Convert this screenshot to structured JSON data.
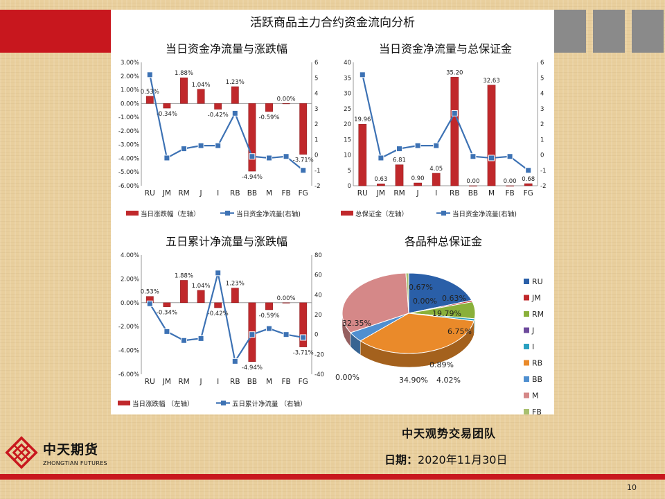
{
  "page": {
    "title": "活跃商品主力合约资金流向分析",
    "team": "中天观势交易团队",
    "date_label": "日期：",
    "date_value": "2020年11月30日",
    "page_number": "10",
    "logo_cn": "中天期货",
    "logo_en": "ZHONGTIAN FUTURES",
    "colors": {
      "accent_red": "#c8171e",
      "bar_red": "#c0282b",
      "line_blue": "#3d72b4",
      "gray": "#8a8a8a"
    }
  },
  "chart_data": [
    {
      "type": "bar",
      "title": "当日资金净流量与涨跌幅",
      "categories": [
        "RU",
        "JM",
        "RM",
        "J",
        "I",
        "RB",
        "BB",
        "M",
        "FB",
        "FG"
      ],
      "series": [
        {
          "name": "当日涨跌幅（左轴）",
          "type": "bar",
          "axis": "left",
          "values": [
            0.53,
            -0.34,
            1.88,
            1.04,
            -0.42,
            1.23,
            -4.94,
            -0.59,
            0.0,
            -3.71
          ],
          "data_labels": [
            "0.53%",
            "-0.34%",
            "1.88%",
            "1.04%",
            "-0.42%",
            "1.23%",
            "-4.94%",
            "-0.59%",
            "0.00%",
            "-3.71%"
          ]
        },
        {
          "name": "当日资金净流量(右轴)",
          "type": "line",
          "axis": "right",
          "values": [
            5.2,
            -0.2,
            0.4,
            0.6,
            0.6,
            2.7,
            -0.1,
            -0.2,
            -0.1,
            -1.0
          ]
        }
      ],
      "ylim_left": [
        -6,
        3
      ],
      "yticks_left": [
        "3.00%",
        "2.00%",
        "1.00%",
        "0.00%",
        "-1.00%",
        "-2.00%",
        "-3.00%",
        "-4.00%",
        "-5.00%",
        "-6.00%"
      ],
      "ylim_right": [
        -2,
        6
      ],
      "yticks_right": [
        "6",
        "5",
        "4",
        "3",
        "2",
        "1",
        "0",
        "-1",
        "-2"
      ]
    },
    {
      "type": "bar",
      "title": "当日资金净流量与总保证金",
      "categories": [
        "RU",
        "JM",
        "RM",
        "J",
        "I",
        "RB",
        "BB",
        "M",
        "FB",
        "FG"
      ],
      "series": [
        {
          "name": "总保证金（左轴）",
          "type": "bar",
          "axis": "left",
          "values": [
            19.96,
            0.63,
            6.81,
            0.9,
            4.05,
            35.2,
            0.0,
            32.63,
            0.0,
            0.68
          ],
          "data_labels": [
            "19.96",
            "0.63",
            "6.81",
            "0.90",
            "4.05",
            "35.20",
            "0.00",
            "32.63",
            "0.00",
            "0.68"
          ]
        },
        {
          "name": "当日资金净流量(右轴)",
          "type": "line",
          "axis": "right",
          "values": [
            5.2,
            -0.2,
            0.4,
            0.6,
            0.6,
            2.7,
            -0.1,
            -0.2,
            -0.1,
            -1.0
          ]
        }
      ],
      "ylim_left": [
        0,
        40
      ],
      "yticks_left": [
        "40",
        "35",
        "30",
        "25",
        "20",
        "15",
        "10",
        "5",
        "0"
      ],
      "ylim_right": [
        -2,
        6
      ],
      "yticks_right": [
        "6",
        "5",
        "4",
        "3",
        "2",
        "1",
        "0",
        "-1",
        "-2"
      ]
    },
    {
      "type": "bar",
      "title": "五日累计净流量与涨跌幅",
      "categories": [
        "RU",
        "JM",
        "RM",
        "J",
        "I",
        "RB",
        "BB",
        "M",
        "FB",
        "FG"
      ],
      "series": [
        {
          "name": "当日涨跌幅 （左轴）",
          "type": "bar",
          "axis": "left",
          "values": [
            0.53,
            -0.34,
            1.88,
            1.04,
            -0.42,
            1.23,
            -4.94,
            -0.59,
            0.0,
            -3.71
          ],
          "data_labels": [
            "0.53%",
            "-0.34%",
            "1.88%",
            "1.04%",
            "-0.42%",
            "1.23%",
            "-4.94%",
            "-0.59%",
            "0.00%",
            "-3.71%"
          ]
        },
        {
          "name": "五日累计净流量 （右轴）",
          "type": "line",
          "axis": "right",
          "values": [
            31,
            3,
            -6,
            -4,
            62,
            -27,
            0,
            6,
            0,
            -3
          ]
        }
      ],
      "ylim_left": [
        -6,
        4
      ],
      "yticks_left": [
        "4.00%",
        "2.00%",
        "0.00%",
        "-2.00%",
        "-4.00%",
        "-6.00%"
      ],
      "ylim_right": [
        -40,
        80
      ],
      "yticks_right": [
        "80",
        "60",
        "40",
        "20",
        "0",
        "-20",
        "-40"
      ]
    },
    {
      "type": "pie",
      "title": "各品种总保证金",
      "categories": [
        "RU",
        "JM",
        "RM",
        "J",
        "I",
        "RB",
        "BB",
        "M",
        "FB"
      ],
      "values": [
        19.79,
        0.63,
        6.75,
        0.0,
        0.89,
        34.9,
        4.02,
        32.35,
        0.67
      ],
      "data_labels": [
        "19.79%",
        "0.63%",
        "6.75%",
        "0.00%",
        "0.89%",
        "34.90%",
        "4.02%",
        "32.35%",
        "0.67%"
      ],
      "extra_label": "0.00%",
      "colors": [
        "#2a5fa8",
        "#c0282b",
        "#8ab03a",
        "#6d4a9c",
        "#2aa0c0",
        "#ea8a2a",
        "#4f8fd0",
        "#d58888",
        "#a8c070"
      ],
      "legend": "right"
    }
  ]
}
